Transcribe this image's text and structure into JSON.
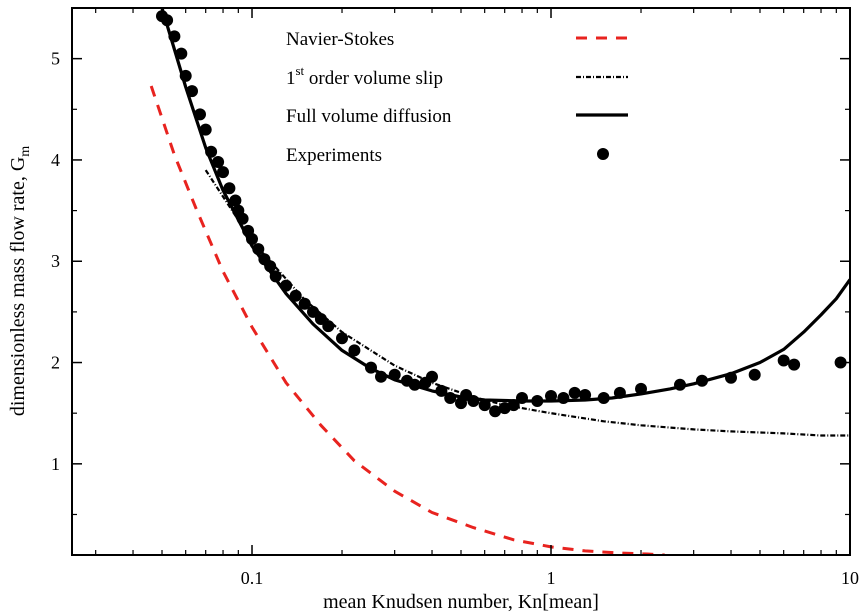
{
  "chart_data": {
    "type": "line",
    "xlabel": "mean Knudsen number, Kn[mean]",
    "ylabel_main": "dimensionless mass flow rate, G",
    "ylabel_sub": "m",
    "xscale": "log",
    "xlim": [
      0.025,
      10
    ],
    "ylim": [
      0.1,
      5.5
    ],
    "x_ticks": [
      {
        "value": 0.1,
        "label": "0.1"
      },
      {
        "value": 1,
        "label": "1"
      },
      {
        "value": 10,
        "label": "10"
      }
    ],
    "y_ticks": [
      {
        "value": 1,
        "label": "1"
      },
      {
        "value": 2,
        "label": "2"
      },
      {
        "value": 3,
        "label": "3"
      },
      {
        "value": 4,
        "label": "4"
      },
      {
        "value": 5,
        "label": "5"
      }
    ],
    "legend_position": "top-right",
    "series": [
      {
        "name": "Navier-Stokes",
        "style": "dashed",
        "color": "#e8231f",
        "x": [
          0.046,
          0.055,
          0.065,
          0.08,
          0.1,
          0.13,
          0.17,
          0.22,
          0.3,
          0.4,
          0.55,
          0.75,
          1.0,
          1.3,
          1.7,
          2.1,
          2.4
        ],
        "y": [
          4.73,
          4.05,
          3.52,
          2.9,
          2.35,
          1.8,
          1.38,
          1.03,
          0.73,
          0.52,
          0.37,
          0.25,
          0.18,
          0.14,
          0.12,
          0.11,
          0.1
        ]
      },
      {
        "name": "1st order volume slip",
        "name_parts": [
          "1",
          "st",
          " order volume slip"
        ],
        "style": "dashdot",
        "color": "#000000",
        "x": [
          0.07,
          0.1,
          0.15,
          0.2,
          0.3,
          0.4,
          0.55,
          0.7,
          1.0,
          1.5,
          2.0,
          3.0,
          4.0,
          6.0,
          8.0,
          10.0
        ],
        "y": [
          3.9,
          3.2,
          2.62,
          2.3,
          1.97,
          1.8,
          1.66,
          1.58,
          1.5,
          1.42,
          1.38,
          1.34,
          1.32,
          1.3,
          1.28,
          1.28
        ]
      },
      {
        "name": "Full volume diffusion",
        "style": "solid",
        "color": "#000000",
        "x": [
          0.05,
          0.06,
          0.07,
          0.08,
          0.1,
          0.13,
          0.16,
          0.2,
          0.25,
          0.3,
          0.4,
          0.5,
          0.6,
          0.8,
          1.0,
          1.3,
          1.6,
          2.0,
          2.5,
          3.0,
          4.0,
          5.0,
          6.0,
          7.0,
          8.0,
          9.0,
          10.0
        ],
        "y": [
          5.5,
          4.72,
          4.12,
          3.7,
          3.15,
          2.68,
          2.38,
          2.12,
          1.94,
          1.83,
          1.72,
          1.66,
          1.63,
          1.62,
          1.62,
          1.63,
          1.65,
          1.69,
          1.74,
          1.79,
          1.89,
          2.0,
          2.13,
          2.3,
          2.47,
          2.63,
          2.82
        ]
      },
      {
        "name": "Experiments",
        "style": "markers",
        "color": "#000000",
        "x": [
          0.05,
          0.052,
          0.055,
          0.058,
          0.06,
          0.063,
          0.067,
          0.07,
          0.073,
          0.077,
          0.08,
          0.084,
          0.088,
          0.09,
          0.093,
          0.097,
          0.1,
          0.105,
          0.11,
          0.115,
          0.12,
          0.13,
          0.14,
          0.15,
          0.16,
          0.17,
          0.18,
          0.2,
          0.22,
          0.25,
          0.27,
          0.3,
          0.33,
          0.35,
          0.38,
          0.4,
          0.43,
          0.46,
          0.5,
          0.52,
          0.55,
          0.6,
          0.65,
          0.7,
          0.75,
          0.8,
          0.9,
          1.0,
          1.1,
          1.2,
          1.3,
          1.5,
          1.7,
          2.0,
          2.7,
          3.2,
          4.0,
          4.8,
          6.0,
          6.5,
          9.3
        ],
        "y": [
          5.42,
          5.38,
          5.22,
          5.05,
          4.83,
          4.68,
          4.45,
          4.3,
          4.08,
          3.98,
          3.88,
          3.72,
          3.6,
          3.5,
          3.42,
          3.3,
          3.22,
          3.12,
          3.02,
          2.95,
          2.85,
          2.76,
          2.66,
          2.58,
          2.5,
          2.43,
          2.36,
          2.24,
          2.12,
          1.95,
          1.86,
          1.88,
          1.82,
          1.78,
          1.8,
          1.86,
          1.72,
          1.65,
          1.6,
          1.68,
          1.62,
          1.58,
          1.52,
          1.55,
          1.58,
          1.65,
          1.62,
          1.67,
          1.65,
          1.7,
          1.68,
          1.65,
          1.7,
          1.74,
          1.78,
          1.82,
          1.85,
          1.88,
          2.02,
          1.98,
          2.0
        ]
      }
    ]
  }
}
